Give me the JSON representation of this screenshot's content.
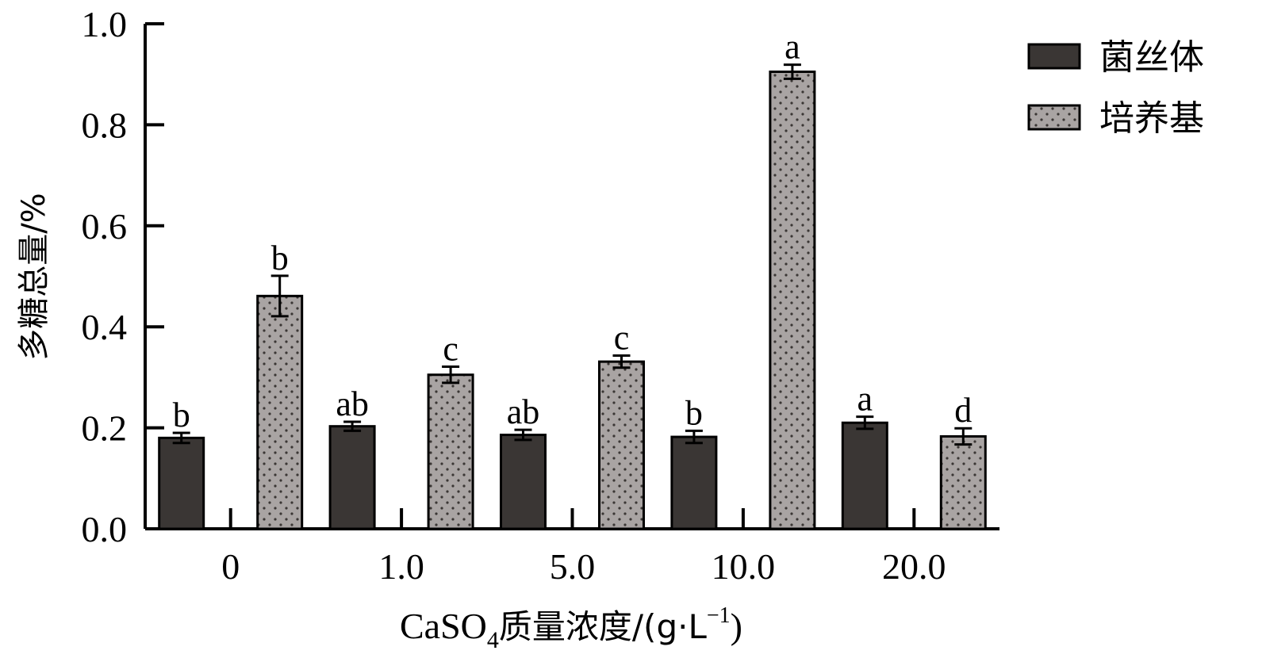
{
  "chart_data": {
    "type": "bar",
    "categories": [
      "0",
      "1.0",
      "5.0",
      "10.0",
      "20.0"
    ],
    "series": [
      {
        "name": "菌丝体",
        "values": [
          0.18,
          0.203,
          0.186,
          0.182,
          0.21
        ],
        "errors": [
          0.01,
          0.009,
          0.01,
          0.012,
          0.012
        ],
        "labels": [
          "b",
          "ab",
          "ab",
          "b",
          "a"
        ],
        "color": "#3a3634"
      },
      {
        "name": "培养基",
        "values": [
          0.461,
          0.305,
          0.331,
          0.905,
          0.183
        ],
        "errors": [
          0.04,
          0.016,
          0.012,
          0.014,
          0.016
        ],
        "labels": [
          "b",
          "c",
          "c",
          "a",
          "d"
        ],
        "color": "#a9a4a3"
      }
    ],
    "ylim": [
      0,
      1.0
    ],
    "yticks": [
      "0.0",
      "0.2",
      "0.4",
      "0.6",
      "0.8",
      "1.0"
    ],
    "ylabel": "多糖总量/%",
    "xlabel": {
      "prefix": "CaSO",
      "subscript": "4",
      "middle": "质量浓度/(g·L",
      "superscript": "−1",
      "suffix": ")"
    },
    "legend_position": "top-right",
    "grid": false
  }
}
